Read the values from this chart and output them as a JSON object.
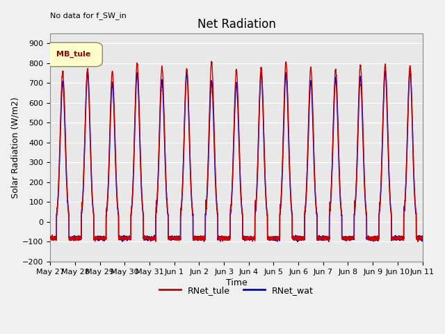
{
  "title": "Net Radiation",
  "xlabel": "Time",
  "ylabel": "Solar Radiation (W/m2)",
  "annotation": "No data for f_SW_in",
  "legend_label": "MB_tule",
  "ylim": [
    -200,
    950
  ],
  "yticks": [
    -200,
    -100,
    0,
    100,
    200,
    300,
    400,
    500,
    600,
    700,
    800,
    900
  ],
  "x_tick_labels": [
    "May 27",
    "May 28",
    "May 29",
    "May 30",
    "May 31",
    "Jun 1",
    "Jun 2",
    "Jun 3",
    "Jun 4",
    "Jun 5",
    "Jun 6",
    "Jun 7",
    "Jun 8",
    "Jun 9",
    "Jun 10",
    "Jun 11"
  ],
  "line1_color": "#cc0000",
  "line1_label": "RNet_tule",
  "line2_color": "#0000cc",
  "line2_label": "RNet_wat",
  "background_color": "#e8e8e8",
  "plot_bg_color": "#f0f0f0",
  "grid_color": "#ffffff",
  "n_days": 15,
  "pts_per_day": 288,
  "title_fontsize": 12,
  "label_fontsize": 9,
  "tick_fontsize": 8,
  "legend_box_color": "#ffffcc",
  "legend_box_edge": "#aaaaaa"
}
